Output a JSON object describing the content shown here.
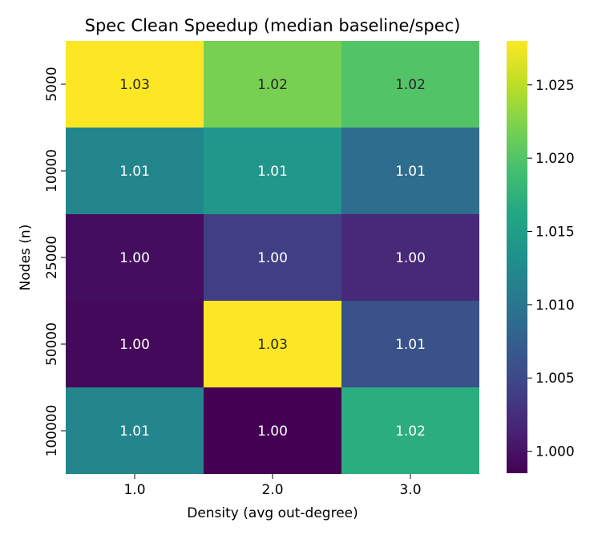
{
  "chart_data": {
    "type": "heatmap",
    "title": "Spec Clean Speedup (median baseline/spec)",
    "xlabel": "Density (avg out-degree)",
    "ylabel": "Nodes (n)",
    "x_categories": [
      "1.0",
      "2.0",
      "3.0"
    ],
    "y_categories": [
      "5000",
      "10000",
      "25000",
      "50000",
      "100000"
    ],
    "values": [
      [
        1.028,
        1.022,
        1.02
      ],
      [
        1.012,
        1.014,
        1.009
      ],
      [
        0.9995,
        1.004,
        1.002
      ],
      [
        0.9992,
        1.028,
        1.006
      ],
      [
        1.012,
        0.9985,
        1.017
      ]
    ],
    "labels": [
      [
        "1.03",
        "1.02",
        "1.02"
      ],
      [
        "1.01",
        "1.01",
        "1.01"
      ],
      [
        "1.00",
        "1.00",
        "1.00"
      ],
      [
        "1.00",
        "1.03",
        "1.01"
      ],
      [
        "1.01",
        "1.00",
        "1.02"
      ]
    ],
    "colormap": "viridis",
    "color_range": [
      0.9985,
      1.028
    ],
    "colorbar_ticks": [
      "1.000",
      "1.005",
      "1.010",
      "1.015",
      "1.020",
      "1.025"
    ]
  }
}
